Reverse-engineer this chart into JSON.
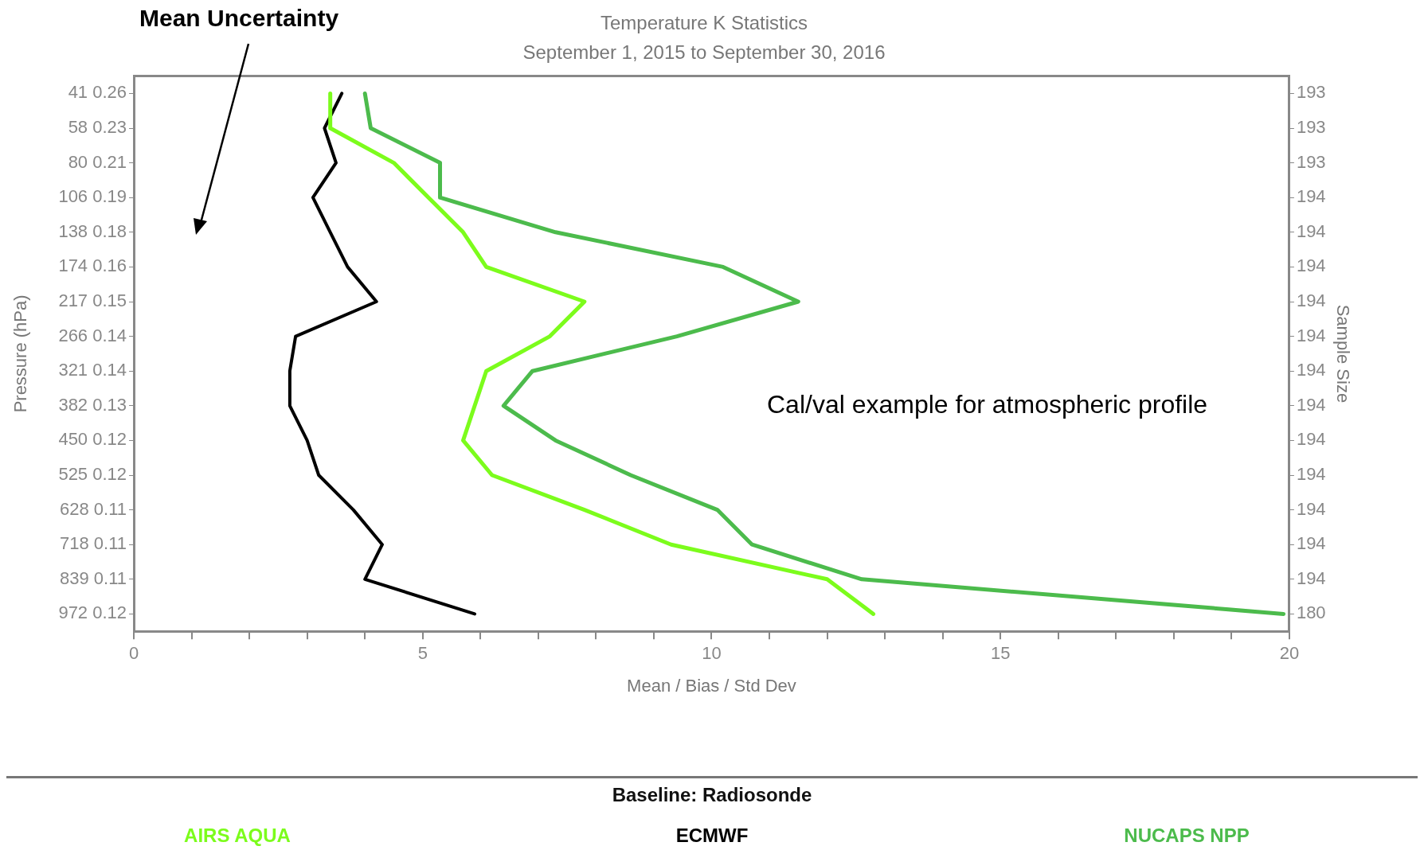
{
  "chart_data": {
    "type": "line",
    "orientation": "horizontal",
    "title": "Temperature K Statistics",
    "subtitle": "September 1, 2015 to September 30, 2016",
    "xlabel": "Mean / Bias / Std Dev",
    "ylabel": "Pressure (hPa)",
    "y2label": "Sample Size",
    "categories": [
      "41 0.26",
      "58 0.23",
      "80 0.21",
      "106 0.19",
      "138 0.18",
      "174 0.16",
      "217 0.15",
      "266 0.14",
      "321 0.14",
      "382 0.13",
      "450 0.12",
      "525 0.12",
      "628 0.11",
      "718 0.11",
      "839 0.11",
      "972 0.12"
    ],
    "y2_categories": [
      "193",
      "193",
      "193",
      "194",
      "194",
      "194",
      "194",
      "194",
      "194",
      "194",
      "194",
      "194",
      "194",
      "194",
      "194",
      "180"
    ],
    "series": [
      {
        "name": "AIRS AQUA",
        "color": "#7cfc1c",
        "values": [
          3.4,
          3.4,
          4.5,
          5.1,
          5.7,
          6.1,
          7.8,
          7.2,
          6.1,
          5.9,
          5.7,
          6.2,
          7.8,
          9.3,
          12.0,
          12.8
        ]
      },
      {
        "name": "ECMWF",
        "color": "#000000",
        "values": [
          3.6,
          3.3,
          3.5,
          3.1,
          3.4,
          3.7,
          4.2,
          2.8,
          2.7,
          2.7,
          3.0,
          3.2,
          3.8,
          4.3,
          4.0,
          5.9
        ]
      },
      {
        "name": "NUCAPS NPP",
        "color": "#4cbb4c",
        "values": [
          4.0,
          4.1,
          5.3,
          5.3,
          7.3,
          10.2,
          11.5,
          9.4,
          6.9,
          6.4,
          7.3,
          8.6,
          10.1,
          10.7,
          12.6,
          19.9
        ]
      }
    ],
    "xlim": [
      0,
      20
    ],
    "xticks": [
      0,
      {
        "value": 1,
        "label": null
      },
      {
        "value": 2,
        "label": null
      },
      {
        "value": 3,
        "label": null
      },
      {
        "value": 4,
        "label": null
      },
      5,
      {
        "value": 6,
        "label": null
      },
      {
        "value": 7,
        "label": null
      },
      {
        "value": 8,
        "label": null
      },
      {
        "value": 9,
        "label": null
      },
      10,
      {
        "value": 11,
        "label": null
      },
      {
        "value": 12,
        "label": null
      },
      {
        "value": 13,
        "label": null
      },
      {
        "value": 14,
        "label": null
      },
      15,
      {
        "value": 16,
        "label": null
      },
      {
        "value": 17,
        "label": null
      },
      {
        "value": 18,
        "label": null
      },
      {
        "value": 19,
        "label": null
      },
      20
    ],
    "grid": false,
    "legend": "bottom",
    "marker": "none",
    "line_style": "solid",
    "annotations": [
      "Mean Uncertainty",
      "Cal/val example for atmospheric profile",
      "Baseline: Radiosonde"
    ]
  }
}
